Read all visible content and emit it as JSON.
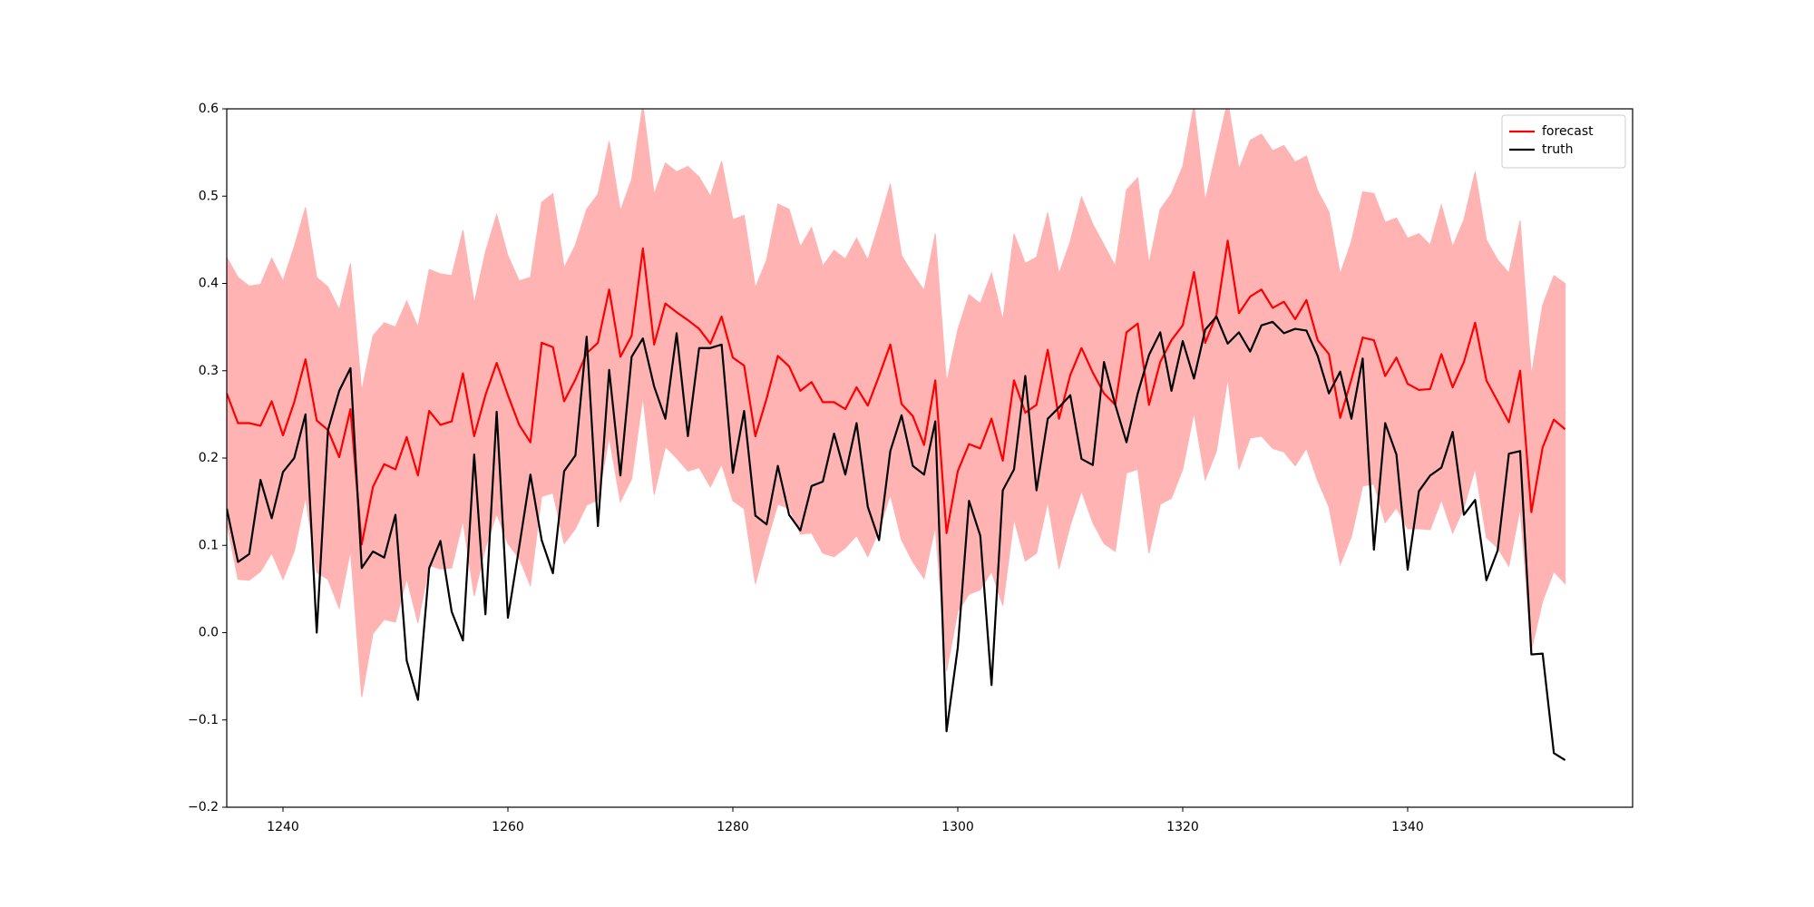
{
  "chart_data": {
    "type": "line",
    "legend": "upper right",
    "x": [
      1235,
      1236,
      1237,
      1238,
      1239,
      1240,
      1241,
      1242,
      1243,
      1244,
      1245,
      1246,
      1247,
      1248,
      1249,
      1250,
      1251,
      1252,
      1253,
      1254,
      1255,
      1256,
      1257,
      1258,
      1259,
      1260,
      1261,
      1262,
      1263,
      1264,
      1265,
      1266,
      1267,
      1268,
      1269,
      1270,
      1271,
      1272,
      1273,
      1274,
      1275,
      1276,
      1277,
      1278,
      1279,
      1280,
      1281,
      1282,
      1283,
      1284,
      1285,
      1286,
      1287,
      1288,
      1289,
      1290,
      1291,
      1292,
      1293,
      1294,
      1295,
      1296,
      1297,
      1298,
      1299,
      1300,
      1301,
      1302,
      1303,
      1304,
      1305,
      1306,
      1307,
      1308,
      1309,
      1310,
      1311,
      1312,
      1313,
      1314,
      1315,
      1316,
      1317,
      1318,
      1319,
      1320,
      1321,
      1322,
      1323,
      1324,
      1325,
      1326,
      1327,
      1328,
      1329,
      1330,
      1331,
      1332,
      1333,
      1334,
      1335,
      1336,
      1337,
      1338,
      1339,
      1340,
      1341,
      1342,
      1343,
      1344,
      1345,
      1346,
      1347,
      1348,
      1349,
      1350,
      1351,
      1352,
      1353,
      1354
    ],
    "series": [
      {
        "name": "forecast",
        "color": "#ff0000",
        "values": [
          0.274,
          0.24,
          0.24,
          0.237,
          0.265,
          0.226,
          0.264,
          0.313,
          0.243,
          0.232,
          0.201,
          0.256,
          0.101,
          0.167,
          0.193,
          0.187,
          0.224,
          0.18,
          0.254,
          0.238,
          0.242,
          0.297,
          0.225,
          0.272,
          0.309,
          0.272,
          0.238,
          0.218,
          0.332,
          0.327,
          0.265,
          0.29,
          0.32,
          0.332,
          0.393,
          0.316,
          0.34,
          0.44,
          0.33,
          0.377,
          0.367,
          0.358,
          0.348,
          0.331,
          0.362,
          0.315,
          0.306,
          0.225,
          0.268,
          0.317,
          0.305,
          0.277,
          0.287,
          0.264,
          0.264,
          0.256,
          0.281,
          0.26,
          0.294,
          0.33,
          0.262,
          0.248,
          0.215,
          0.289,
          0.114,
          0.185,
          0.216,
          0.211,
          0.245,
          0.197,
          0.289,
          0.252,
          0.261,
          0.324,
          0.245,
          0.295,
          0.326,
          0.298,
          0.274,
          0.261,
          0.344,
          0.354,
          0.261,
          0.31,
          0.335,
          0.352,
          0.413,
          0.332,
          0.364,
          0.449,
          0.366,
          0.385,
          0.393,
          0.372,
          0.379,
          0.359,
          0.381,
          0.335,
          0.319,
          0.246,
          0.29,
          0.338,
          0.335,
          0.294,
          0.315,
          0.285,
          0.278,
          0.279,
          0.319,
          0.281,
          0.31,
          0.355,
          0.289,
          0.265,
          0.241,
          0.3,
          0.138,
          0.212,
          0.244,
          0.233
        ]
      },
      {
        "name": "truth",
        "color": "#000000",
        "values": [
          0.142,
          0.081,
          0.09,
          0.175,
          0.131,
          0.184,
          0.2,
          0.25,
          0.0,
          0.232,
          0.277,
          0.303,
          0.074,
          0.093,
          0.086,
          0.135,
          -0.032,
          -0.077,
          0.074,
          0.105,
          0.024,
          -0.009,
          0.204,
          0.021,
          0.253,
          0.017,
          0.098,
          0.181,
          0.106,
          0.068,
          0.185,
          0.203,
          0.339,
          0.122,
          0.301,
          0.18,
          0.316,
          0.337,
          0.282,
          0.245,
          0.343,
          0.225,
          0.326,
          0.326,
          0.33,
          0.183,
          0.254,
          0.134,
          0.124,
          0.191,
          0.135,
          0.117,
          0.168,
          0.173,
          0.228,
          0.181,
          0.24,
          0.144,
          0.106,
          0.208,
          0.249,
          0.191,
          0.181,
          0.242,
          -0.113,
          -0.017,
          0.151,
          0.111,
          -0.06,
          0.163,
          0.187,
          0.294,
          0.163,
          0.245,
          0.258,
          0.272,
          0.199,
          0.192,
          0.31,
          0.261,
          0.218,
          0.274,
          0.318,
          0.344,
          0.277,
          0.334,
          0.291,
          0.347,
          0.362,
          0.331,
          0.344,
          0.322,
          0.352,
          0.356,
          0.343,
          0.348,
          0.346,
          0.317,
          0.274,
          0.299,
          0.245,
          0.314,
          0.095,
          0.24,
          0.204,
          0.072,
          0.162,
          0.18,
          0.189,
          0.23,
          0.135,
          0.152,
          0.06,
          0.094,
          0.205,
          0.208,
          -0.025,
          -0.024,
          -0.138,
          -0.146
        ]
      }
    ],
    "band": {
      "color": "#ffb3b3",
      "upper": [
        0.43,
        0.407,
        0.397,
        0.399,
        0.429,
        0.403,
        0.442,
        0.487,
        0.407,
        0.396,
        0.37,
        0.423,
        0.277,
        0.34,
        0.355,
        0.35,
        0.38,
        0.35,
        0.416,
        0.411,
        0.409,
        0.461,
        0.377,
        0.436,
        0.479,
        0.432,
        0.403,
        0.407,
        0.493,
        0.503,
        0.418,
        0.444,
        0.485,
        0.502,
        0.563,
        0.483,
        0.519,
        0.605,
        0.502,
        0.538,
        0.528,
        0.534,
        0.522,
        0.5,
        0.54,
        0.473,
        0.478,
        0.395,
        0.427,
        0.491,
        0.485,
        0.442,
        0.464,
        0.42,
        0.438,
        0.428,
        0.452,
        0.427,
        0.469,
        0.514,
        0.432,
        0.411,
        0.392,
        0.457,
        0.286,
        0.347,
        0.387,
        0.377,
        0.412,
        0.358,
        0.457,
        0.423,
        0.43,
        0.481,
        0.411,
        0.448,
        0.499,
        0.468,
        0.444,
        0.42,
        0.507,
        0.521,
        0.423,
        0.485,
        0.503,
        0.534,
        0.605,
        0.495,
        0.552,
        0.609,
        0.531,
        0.564,
        0.571,
        0.552,
        0.558,
        0.539,
        0.546,
        0.506,
        0.482,
        0.411,
        0.448,
        0.505,
        0.503,
        0.47,
        0.475,
        0.452,
        0.457,
        0.444,
        0.49,
        0.442,
        0.473,
        0.528,
        0.45,
        0.427,
        0.412,
        0.472,
        0.295,
        0.375,
        0.409,
        0.4
      ],
      "lower": [
        0.126,
        0.061,
        0.06,
        0.07,
        0.091,
        0.061,
        0.093,
        0.155,
        0.069,
        0.061,
        0.028,
        0.094,
        -0.074,
        -0.001,
        0.015,
        0.012,
        0.062,
        0.011,
        0.077,
        0.073,
        0.074,
        0.128,
        0.042,
        0.097,
        0.136,
        0.102,
        0.085,
        0.054,
        0.156,
        0.16,
        0.102,
        0.119,
        0.146,
        0.152,
        0.224,
        0.15,
        0.176,
        0.27,
        0.158,
        0.213,
        0.2,
        0.185,
        0.189,
        0.167,
        0.193,
        0.151,
        0.142,
        0.056,
        0.103,
        0.147,
        0.142,
        0.113,
        0.114,
        0.091,
        0.087,
        0.097,
        0.111,
        0.087,
        0.117,
        0.158,
        0.106,
        0.081,
        0.062,
        0.121,
        -0.044,
        0.024,
        0.044,
        0.049,
        0.07,
        0.031,
        0.13,
        0.082,
        0.091,
        0.15,
        0.073,
        0.123,
        0.162,
        0.126,
        0.102,
        0.093,
        0.183,
        0.187,
        0.091,
        0.147,
        0.154,
        0.187,
        0.252,
        0.175,
        0.208,
        0.291,
        0.187,
        0.223,
        0.225,
        0.211,
        0.207,
        0.191,
        0.211,
        0.174,
        0.144,
        0.078,
        0.11,
        0.168,
        0.17,
        0.126,
        0.143,
        0.119,
        0.119,
        0.118,
        0.152,
        0.114,
        0.143,
        0.188,
        0.109,
        0.097,
        0.076,
        0.142,
        -0.02,
        0.036,
        0.07,
        0.056
      ]
    },
    "xlim": [
      1235,
      1360
    ],
    "xticks": [
      1240,
      1260,
      1280,
      1300,
      1320,
      1340
    ],
    "ylim": [
      -0.2,
      0.6
    ],
    "yticks": [
      {
        "value": -0.2,
        "label": "−0.2"
      },
      {
        "value": -0.1,
        "label": "−0.1"
      },
      {
        "value": 0,
        "label": "0.0"
      },
      0.1,
      0.2,
      0.3,
      0.4,
      0.5,
      0.6
    ]
  }
}
